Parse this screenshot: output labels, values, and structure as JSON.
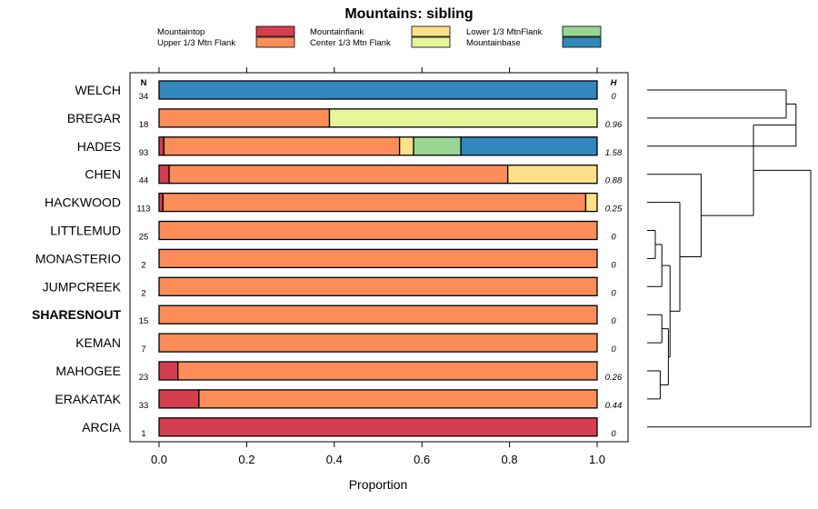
{
  "chart_data": {
    "type": "bar",
    "orientation": "horizontal",
    "stacked": true,
    "title": "Mountains: sibling",
    "xlabel": "Proportion",
    "xlim": [
      0,
      1
    ],
    "xticks": [
      "0.0",
      "0.2",
      "0.4",
      "0.6",
      "0.8",
      "1.0"
    ],
    "n_header": "N",
    "h_header": "H",
    "legend": [
      {
        "name": "Mountaintop",
        "color": "#d53e4f"
      },
      {
        "name": "Mountainflank",
        "color": "#fee08b"
      },
      {
        "name": "Lower 1/3 MtnFlank",
        "color": "#99d594"
      },
      {
        "name": "Upper 1/3 Mtn Flank",
        "color": "#fc8d59"
      },
      {
        "name": "Center 1/3 Mtn Flank",
        "color": "#e6f598"
      },
      {
        "name": "Mountainbase",
        "color": "#3288bd"
      }
    ],
    "rows": [
      {
        "label": "WELCH",
        "bold": false,
        "n": "34",
        "h": "0",
        "segments": [
          {
            "cat": "Mountainbase",
            "value": 1.0
          }
        ]
      },
      {
        "label": "BREGAR",
        "bold": false,
        "n": "18",
        "h": "0.96",
        "segments": [
          {
            "cat": "Upper 1/3 Mtn Flank",
            "value": 0.389
          },
          {
            "cat": "Center 1/3 Mtn Flank",
            "value": 0.611
          }
        ]
      },
      {
        "label": "HADES",
        "bold": false,
        "n": "93",
        "h": "1.58",
        "segments": [
          {
            "cat": "Mountaintop",
            "value": 0.011
          },
          {
            "cat": "Upper 1/3 Mtn Flank",
            "value": 0.538
          },
          {
            "cat": "Mountainflank",
            "value": 0.032
          },
          {
            "cat": "Lower 1/3 MtnFlank",
            "value": 0.108
          },
          {
            "cat": "Mountainbase",
            "value": 0.311
          }
        ]
      },
      {
        "label": "CHEN",
        "bold": false,
        "n": "44",
        "h": "0.88",
        "segments": [
          {
            "cat": "Mountaintop",
            "value": 0.023
          },
          {
            "cat": "Upper 1/3 Mtn Flank",
            "value": 0.773
          },
          {
            "cat": "Mountainflank",
            "value": 0.204
          }
        ]
      },
      {
        "label": "HACKWOOD",
        "bold": false,
        "n": "113",
        "h": "0.25",
        "segments": [
          {
            "cat": "Mountaintop",
            "value": 0.009
          },
          {
            "cat": "Upper 1/3 Mtn Flank",
            "value": 0.965
          },
          {
            "cat": "Mountainflank",
            "value": 0.026
          }
        ]
      },
      {
        "label": "LITTLEMUD",
        "bold": false,
        "n": "25",
        "h": "0",
        "segments": [
          {
            "cat": "Upper 1/3 Mtn Flank",
            "value": 1.0
          }
        ]
      },
      {
        "label": "MONASTERIO",
        "bold": false,
        "n": "2",
        "h": "0",
        "segments": [
          {
            "cat": "Upper 1/3 Mtn Flank",
            "value": 1.0
          }
        ]
      },
      {
        "label": "JUMPCREEK",
        "bold": false,
        "n": "2",
        "h": "0",
        "segments": [
          {
            "cat": "Upper 1/3 Mtn Flank",
            "value": 1.0
          }
        ]
      },
      {
        "label": "SHARESNOUT",
        "bold": true,
        "n": "15",
        "h": "0",
        "segments": [
          {
            "cat": "Upper 1/3 Mtn Flank",
            "value": 1.0
          }
        ]
      },
      {
        "label": "KEMAN",
        "bold": false,
        "n": "7",
        "h": "0",
        "segments": [
          {
            "cat": "Upper 1/3 Mtn Flank",
            "value": 1.0
          }
        ]
      },
      {
        "label": "MAHOGEE",
        "bold": false,
        "n": "23",
        "h": "0.26",
        "segments": [
          {
            "cat": "Mountaintop",
            "value": 0.043
          },
          {
            "cat": "Upper 1/3 Mtn Flank",
            "value": 0.957
          }
        ]
      },
      {
        "label": "ERAKATAK",
        "bold": false,
        "n": "33",
        "h": "0.44",
        "segments": [
          {
            "cat": "Mountaintop",
            "value": 0.091
          },
          {
            "cat": "Upper 1/3 Mtn Flank",
            "value": 0.909
          }
        ]
      },
      {
        "label": "ARCIA",
        "bold": false,
        "n": "1",
        "h": "0",
        "segments": [
          {
            "cat": "Mountaintop",
            "value": 1.0
          }
        ]
      }
    ],
    "dendrogram": {
      "note": "Hierarchical clustering tree beside rows; leaf order matches rows",
      "merges": [
        {
          "a": "WELCH",
          "b": "BREGAR",
          "height": 0.85
        },
        {
          "a": "WELCH+BREGAR",
          "b": "HADES",
          "height": 0.91
        },
        {
          "a": "LITTLEMUD",
          "b": "MONASTERIO",
          "height": 0.05
        },
        {
          "a": "LITTLEMUD+MONASTERIO",
          "b": "JUMPCREEK",
          "height": 0.09
        },
        {
          "a": "SHARESNOUT",
          "b": "KEMAN",
          "height": 0.09
        },
        {
          "a": "MAHOGEE",
          "b": "ERAKATAK",
          "height": 0.08
        },
        {
          "a": "SHARESNOUT+KEMAN",
          "b": "MAHOGEE+ERAKATAK",
          "height": 0.13
        },
        {
          "a": "LITTLEMUD+MONASTERIO+JUMPCREEK",
          "b": "SHARESNOUT+KEMAN+MAHOGEE+ERAKATAK",
          "height": 0.14
        },
        {
          "a": "HACKWOOD",
          "b": "LITTLEMUD..ERAKATAK",
          "height": 0.2
        },
        {
          "a": "CHEN",
          "b": "HACKWOOD..ERAKATAK",
          "height": 0.33
        },
        {
          "a": "WELCH..HADES",
          "b": "CHEN..ERAKATAK",
          "height": 0.65
        },
        {
          "a": "WELCH..ERAKATAK",
          "b": "ARCIA",
          "height": 1.0
        }
      ]
    }
  }
}
